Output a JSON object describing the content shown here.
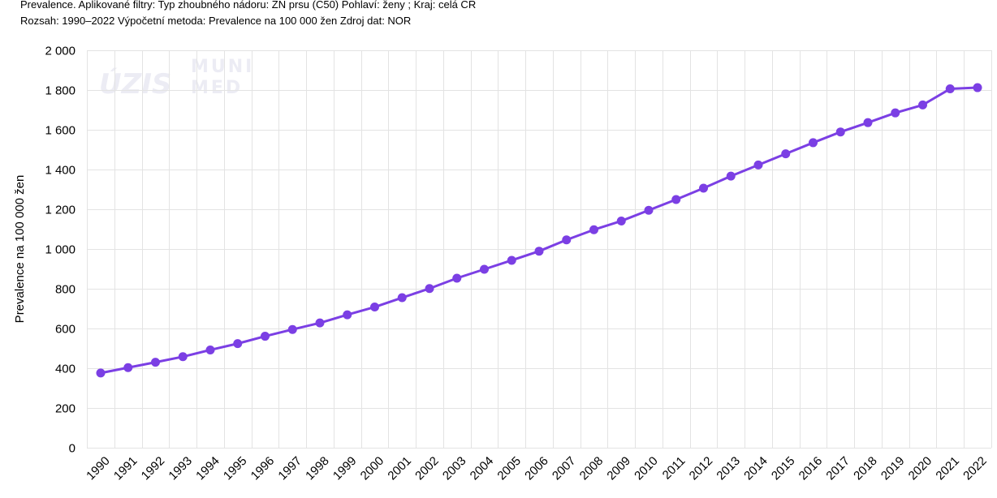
{
  "header": {
    "line1": "Prevalence. Aplikované filtry: Typ zhoubného nádoru: ZN prsu (C50) Pohlaví: ženy ; Kraj: celá CR",
    "line2": "Rozsah: 1990–2022 Výpočetní metoda: Prevalence na 100 000 žen Zdroj dat: NOR"
  },
  "watermark": {
    "logo1": "ÚZIS",
    "logo2_top": "MUNI",
    "logo2_bottom": "MED"
  },
  "colors": {
    "series": "#7b3fe4",
    "grid": "#e3e3e3",
    "watermark": "#ececf4"
  },
  "chart_data": {
    "type": "line",
    "ylabel": "Prevalence na 100 000 žen",
    "xlabel": "",
    "ylim": [
      0,
      2000
    ],
    "yticks": [
      0,
      200,
      400,
      600,
      800,
      1000,
      1200,
      1400,
      1600,
      1800,
      2000
    ],
    "ytick_labels": [
      "0",
      "200",
      "400",
      "600",
      "800",
      "1 000",
      "1 200",
      "1 400",
      "1 600",
      "1 800",
      "2 000"
    ],
    "grid": true,
    "legend": "none",
    "categories": [
      "1990",
      "1991",
      "1992",
      "1993",
      "1994",
      "1995",
      "1996",
      "1997",
      "1998",
      "1999",
      "2000",
      "2001",
      "2002",
      "2003",
      "2004",
      "2005",
      "2006",
      "2007",
      "2008",
      "2009",
      "2010",
      "2011",
      "2012",
      "2013",
      "2014",
      "2015",
      "2016",
      "2017",
      "2018",
      "2019",
      "2020",
      "2021",
      "2022"
    ],
    "series": [
      {
        "values": [
          376,
          403,
          430,
          458,
          492,
          524,
          561,
          595,
          628,
          669,
          708,
          755,
          801,
          853,
          898,
          943,
          989,
          1046,
          1097,
          1141,
          1195,
          1249,
          1306,
          1367,
          1423,
          1479,
          1535,
          1589,
          1636,
          1685,
          1725,
          1806,
          1812
        ]
      }
    ]
  }
}
